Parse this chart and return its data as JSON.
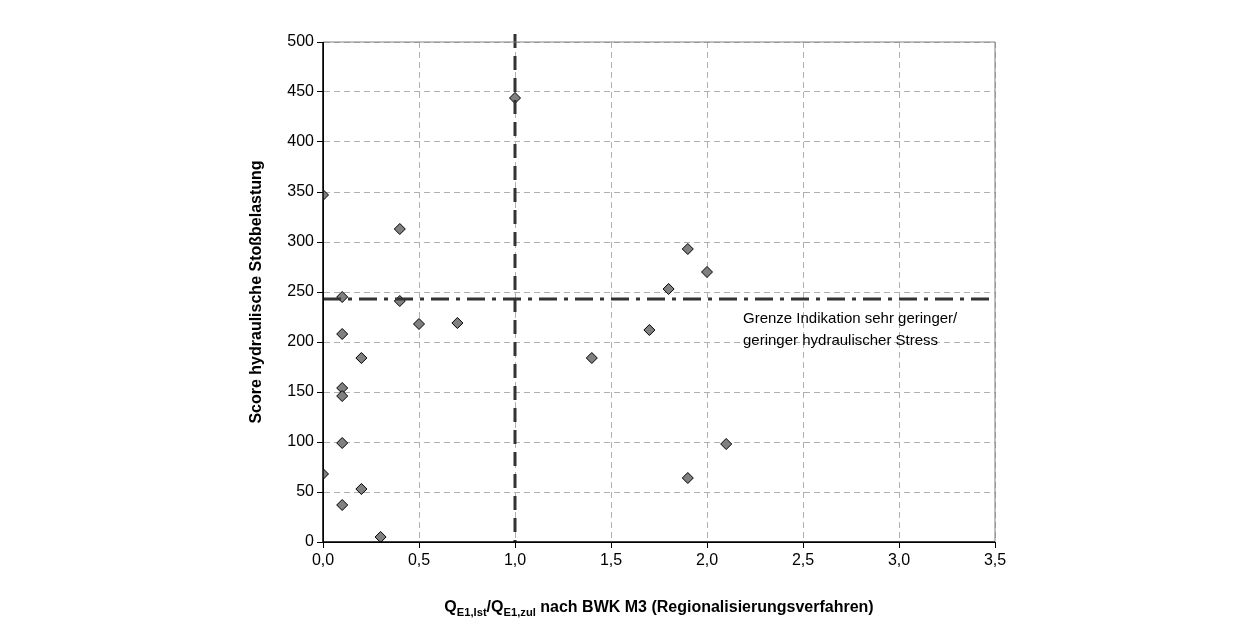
{
  "chart_data": {
    "type": "scatter",
    "xlabel": "Q$_{E1,Ist}$/Q$_{E1,zul}$ nach BWK M3 (Regionalisierungsverfahren)",
    "ylabel": "Score hydraulische Stoßbelastung",
    "x": [
      0,
      0,
      0.1,
      0.1,
      0.1,
      0.1,
      0.1,
      0.1,
      0.2,
      0.2,
      0.3,
      0.4,
      0.4,
      0.5,
      0.7,
      1.0,
      1.4,
      1.7,
      1.8,
      1.9,
      1.9,
      2.0,
      2.1
    ],
    "values": [
      68,
      347,
      245,
      208,
      154,
      146,
      99,
      37,
      184,
      53,
      5,
      313,
      241,
      218,
      219,
      444,
      184,
      212,
      253,
      293,
      64,
      270,
      98
    ],
    "color": "#808080",
    "marker": "diamond",
    "xlim": [
      0,
      3.5
    ],
    "xticks": [
      {
        "value": 0,
        "label": "0,0"
      },
      {
        "value": 0.5,
        "label": "0,5"
      },
      {
        "value": 1,
        "label": "1,0"
      },
      {
        "value": 1.5,
        "label": "1,5"
      },
      {
        "value": 2,
        "label": "2,0"
      },
      {
        "value": 2.5,
        "label": "2,5"
      },
      {
        "value": 3,
        "label": "3,0"
      },
      {
        "value": 3.5,
        "label": "3,5"
      }
    ],
    "ylim": [
      0,
      500
    ],
    "yticks": [
      0,
      50,
      100,
      150,
      200,
      250,
      300,
      350,
      400,
      450,
      500
    ],
    "grid": true,
    "ref_lines": [
      {
        "axis": "x",
        "value": 1,
        "line_style": "dashed",
        "color": "#333333"
      },
      {
        "axis": "y",
        "value": 243,
        "line_style": "dashdot",
        "color": "#333333",
        "label": "Grenze Indikation sehr geringer/ geringer hydraulischer Stress"
      }
    ]
  }
}
